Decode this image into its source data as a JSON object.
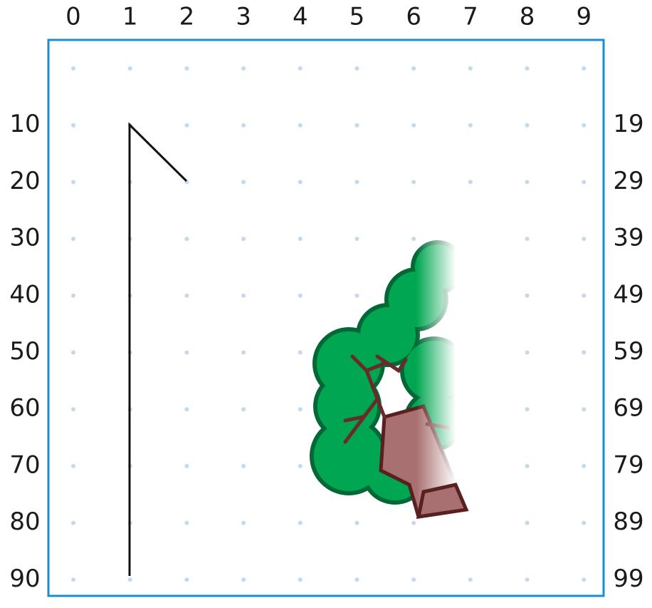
{
  "column_labels": [
    "0",
    "1",
    "2",
    "3",
    "4",
    "5",
    "6",
    "7",
    "8",
    "9"
  ],
  "row_labels_left": [
    "10",
    "20",
    "30",
    "40",
    "50",
    "60",
    "70",
    "80",
    "90"
  ],
  "row_labels_right": [
    "19",
    "29",
    "39",
    "49",
    "59",
    "69",
    "79",
    "89",
    "99"
  ]
}
